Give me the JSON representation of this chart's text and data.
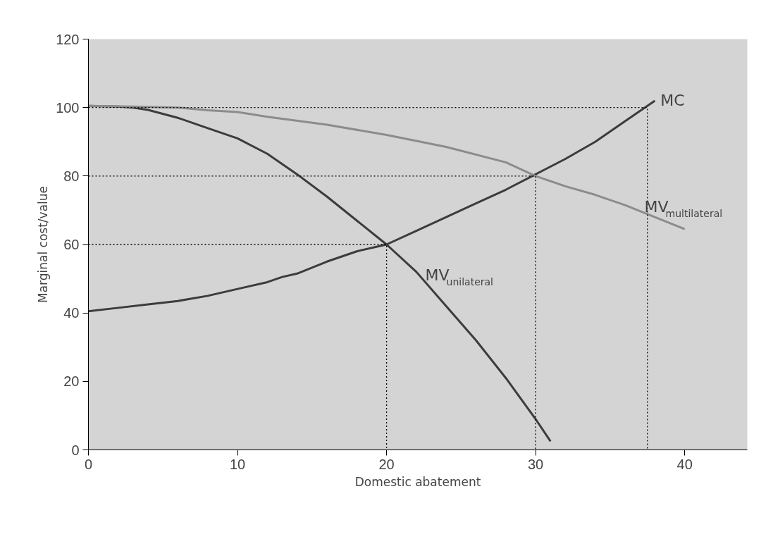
{
  "chart_data": {
    "type": "line",
    "xlabel": "Domestic abatement",
    "ylabel": "Marginal cost/value",
    "xlim": [
      0,
      44.2
    ],
    "ylim": [
      0,
      120
    ],
    "xticks": [
      0,
      10,
      20,
      30,
      40
    ],
    "yticks": [
      0,
      20,
      40,
      60,
      80,
      100,
      120
    ],
    "grid": false,
    "marker": "none",
    "line_style": "solid",
    "series": [
      {
        "color": "#3c3c3c",
        "x": [
          0,
          2,
          4,
          6,
          8,
          10,
          12,
          13,
          14,
          16,
          18,
          20,
          22,
          24,
          26,
          28,
          30,
          32,
          34,
          36,
          38
        ],
        "values": [
          40.5,
          41.5,
          42.5,
          43.5,
          45,
          47,
          49,
          50.5,
          51.5,
          55,
          58,
          60,
          64,
          68,
          72,
          76,
          80.5,
          85,
          90,
          96,
          102
        ]
      },
      {
        "color": "#3c3c3c",
        "x": [
          0,
          2,
          3,
          4,
          6,
          8,
          10,
          12,
          14,
          16,
          18,
          20,
          22,
          24,
          26,
          28,
          30,
          31
        ],
        "values": [
          100.5,
          100.3,
          100,
          99.3,
          97,
          94,
          91,
          86.5,
          80.5,
          74,
          67,
          60,
          52,
          42,
          32,
          21,
          9,
          2.5
        ]
      },
      {
        "color": "#8c8c8c",
        "x": [
          0,
          3,
          6,
          8,
          10,
          12,
          16,
          20,
          24,
          28,
          30,
          32,
          34,
          36,
          38,
          40
        ],
        "values": [
          100.5,
          100.3,
          100,
          99.2,
          98.7,
          97.3,
          95,
          92,
          88.5,
          84,
          80,
          77,
          74.5,
          71.5,
          68,
          64.5
        ]
      },
      {
        "color": "#000000",
        "line_style": "dotted",
        "x": [
          0,
          37.5,
          37.5
        ],
        "values": [
          100,
          100,
          0
        ]
      },
      {
        "color": "#000000",
        "line_style": "dotted",
        "x": [
          0,
          30,
          30
        ],
        "values": [
          80,
          80,
          0
        ]
      },
      {
        "color": "#000000",
        "line_style": "dotted",
        "x": [
          0,
          20,
          20
        ],
        "values": [
          60,
          60,
          0
        ]
      }
    ],
    "annotations": [
      {
        "text": "MC",
        "x": 38,
        "y": 102
      },
      {
        "text": "MV$_{multilateral}$",
        "x": 37.3,
        "y": 71
      },
      {
        "text": "MV$_{unilateral}$",
        "x": 22.6,
        "y": 51
      }
    ]
  }
}
